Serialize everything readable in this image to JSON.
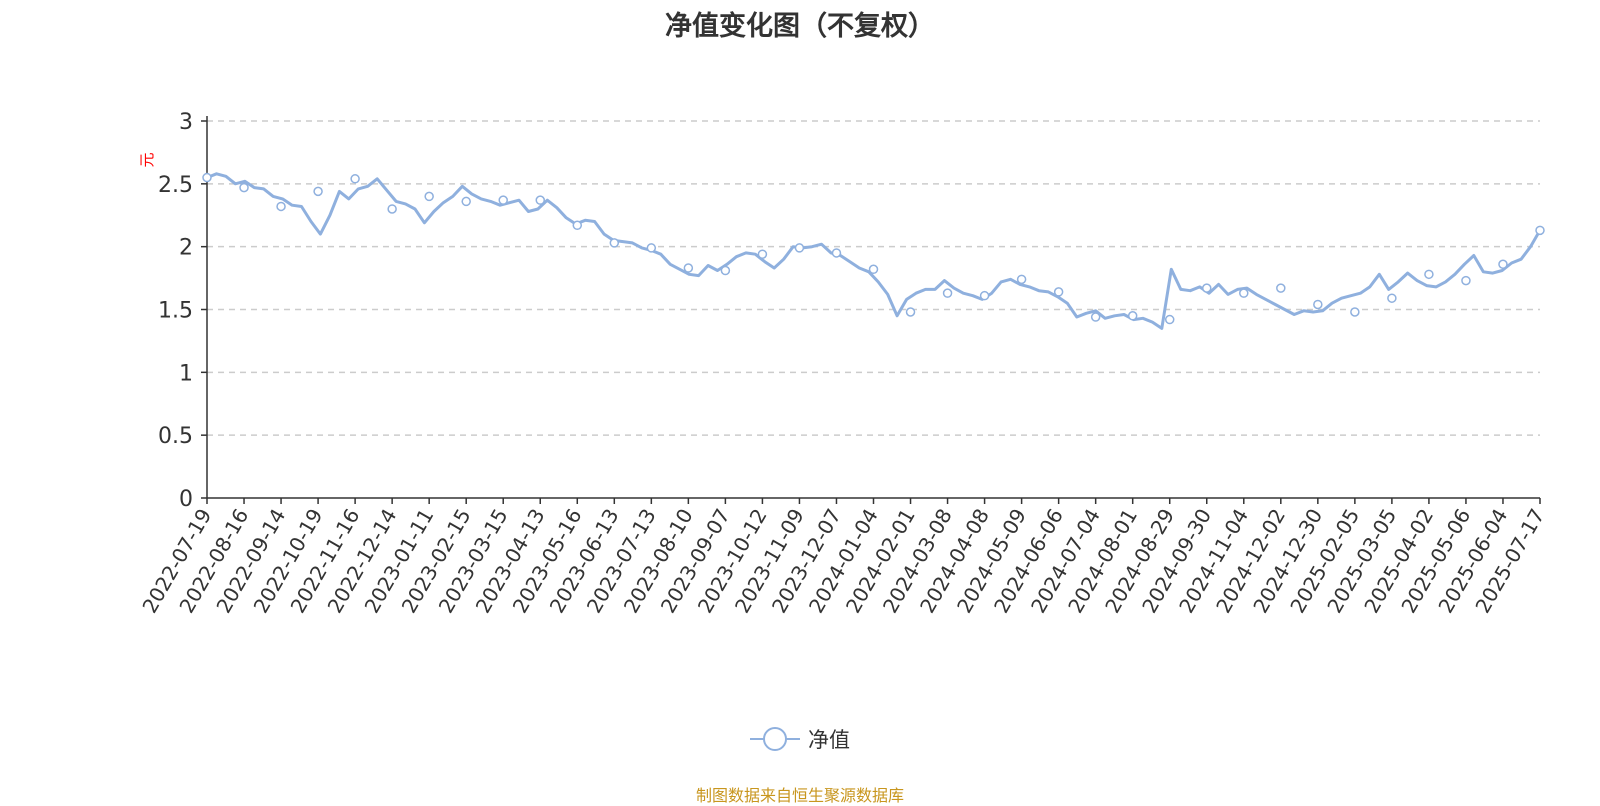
{
  "title": "净值变化图（不复权）",
  "source_note": "制图数据来自恒生聚源数据库",
  "legend": {
    "label": "净值"
  },
  "colors": {
    "line": "#8fb0de",
    "grid": "#cccccc",
    "axis": "#333333",
    "unit": "#ff0000",
    "source": "#c8961e"
  },
  "chart_data": {
    "type": "line",
    "title": "净值变化图（不复权）",
    "xlabel": "",
    "ylabel": "元",
    "ylim": [
      0,
      3
    ],
    "yticks": [
      "0",
      "0.5",
      "1",
      "1.5",
      "2",
      "2.5",
      "3"
    ],
    "grid": true,
    "legend_position": "bottom",
    "categories": [
      "2022-07-19",
      "2022-08-16",
      "2022-09-14",
      "2022-10-19",
      "2022-11-16",
      "2022-12-14",
      "2023-01-11",
      "2023-02-15",
      "2023-03-15",
      "2023-04-13",
      "2023-05-16",
      "2023-06-13",
      "2023-07-13",
      "2023-08-10",
      "2023-09-07",
      "2023-10-12",
      "2023-11-09",
      "2023-12-07",
      "2024-01-04",
      "2024-02-01",
      "2024-03-08",
      "2024-04-08",
      "2024-05-09",
      "2024-06-06",
      "2024-07-04",
      "2024-08-01",
      "2024-08-29",
      "2024-09-30",
      "2024-11-04",
      "2024-12-02",
      "2024-12-30",
      "2025-02-05",
      "2025-03-05",
      "2025-04-02",
      "2025-05-06",
      "2025-06-04",
      "2025-07-17"
    ],
    "series": [
      {
        "name": "净值",
        "x": [
          "2022-07-19",
          "2022-08-16",
          "2022-09-14",
          "2022-10-19",
          "2022-11-16",
          "2022-12-14",
          "2023-01-11",
          "2023-02-15",
          "2023-03-15",
          "2023-04-13",
          "2023-05-16",
          "2023-06-13",
          "2023-07-13",
          "2023-08-10",
          "2023-09-07",
          "2023-10-12",
          "2023-11-09",
          "2023-12-07",
          "2024-01-04",
          "2024-02-01",
          "2024-03-08",
          "2024-04-08",
          "2024-05-09",
          "2024-06-06",
          "2024-07-04",
          "2024-08-01",
          "2024-08-29",
          "2024-09-30",
          "2024-11-04",
          "2024-12-02",
          "2024-12-30",
          "2025-02-05",
          "2025-03-05",
          "2025-04-02",
          "2025-05-06",
          "2025-06-04",
          "2025-07-17"
        ],
        "values": [
          2.55,
          2.47,
          2.32,
          2.44,
          2.54,
          2.3,
          2.4,
          2.36,
          2.37,
          2.37,
          2.17,
          2.03,
          1.99,
          1.83,
          1.81,
          1.94,
          1.99,
          1.95,
          1.82,
          1.48,
          1.63,
          1.61,
          1.74,
          1.64,
          1.44,
          1.45,
          1.42,
          1.67,
          1.63,
          1.67,
          1.54,
          1.48,
          1.59,
          1.78,
          1.73,
          1.86,
          2.13
        ],
        "detail": [
          2.55,
          2.58,
          2.56,
          2.5,
          2.52,
          2.47,
          2.46,
          2.4,
          2.38,
          2.33,
          2.32,
          2.2,
          2.1,
          2.25,
          2.44,
          2.38,
          2.46,
          2.48,
          2.54,
          2.45,
          2.36,
          2.34,
          2.3,
          2.19,
          2.28,
          2.35,
          2.4,
          2.48,
          2.42,
          2.38,
          2.36,
          2.33,
          2.35,
          2.37,
          2.28,
          2.3,
          2.37,
          2.31,
          2.23,
          2.18,
          2.21,
          2.2,
          2.1,
          2.05,
          2.04,
          2.03,
          1.99,
          1.97,
          1.94,
          1.86,
          1.82,
          1.78,
          1.77,
          1.85,
          1.81,
          1.86,
          1.92,
          1.95,
          1.94,
          1.88,
          1.83,
          1.9,
          2.0,
          1.99,
          2.0,
          2.02,
          1.95,
          1.93,
          1.88,
          1.83,
          1.8,
          1.72,
          1.62,
          1.45,
          1.58,
          1.63,
          1.66,
          1.66,
          1.73,
          1.67,
          1.63,
          1.61,
          1.58,
          1.63,
          1.72,
          1.74,
          1.7,
          1.68,
          1.65,
          1.64,
          1.6,
          1.55,
          1.44,
          1.47,
          1.49,
          1.43,
          1.45,
          1.46,
          1.42,
          1.43,
          1.4,
          1.35,
          1.82,
          1.66,
          1.65,
          1.68,
          1.63,
          1.7,
          1.62,
          1.66,
          1.67,
          1.62,
          1.58,
          1.54,
          1.5,
          1.46,
          1.49,
          1.48,
          1.49,
          1.55,
          1.59,
          1.61,
          1.63,
          1.68,
          1.78,
          1.66,
          1.72,
          1.79,
          1.73,
          1.69,
          1.68,
          1.72,
          1.78,
          1.86,
          1.93,
          1.8,
          1.79,
          1.81,
          1.87,
          1.9,
          2.0,
          2.13
        ]
      }
    ]
  }
}
